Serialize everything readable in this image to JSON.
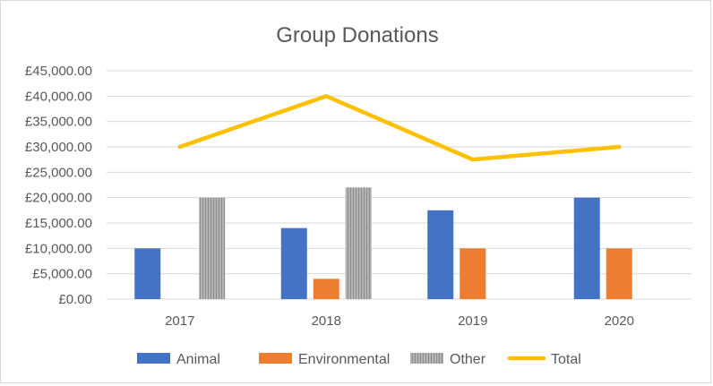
{
  "chart_data": {
    "type": "bar",
    "title": "Group Donations",
    "xlabel": "",
    "ylabel": "",
    "categories": [
      "2017",
      "2018",
      "2019",
      "2020"
    ],
    "ylim": [
      0,
      45000
    ],
    "yticks": [
      0,
      5000,
      10000,
      15000,
      20000,
      25000,
      30000,
      35000,
      40000,
      45000
    ],
    "ytick_labels": [
      "£0.00",
      "£5,000.00",
      "£10,000.00",
      "£15,000.00",
      "£20,000.00",
      "£25,000.00",
      "£30,000.00",
      "£35,000.00",
      "£40,000.00",
      "£45,000.00"
    ],
    "grid": true,
    "legend_position": "bottom",
    "series": [
      {
        "name": "Animal",
        "type": "bar",
        "color": "#4472c4",
        "values": [
          10000,
          14000,
          17500,
          20000
        ]
      },
      {
        "name": "Environmental",
        "type": "bar",
        "color": "#ed7d31",
        "values": [
          0,
          4000,
          10000,
          10000
        ]
      },
      {
        "name": "Other",
        "type": "bar",
        "color": "#a5a5a5",
        "pattern": "vertical-stripes",
        "values": [
          20000,
          22000,
          0,
          0
        ]
      },
      {
        "name": "Total",
        "type": "line",
        "color": "#ffc000",
        "values": [
          30000,
          40000,
          27500,
          30000
        ]
      }
    ]
  }
}
